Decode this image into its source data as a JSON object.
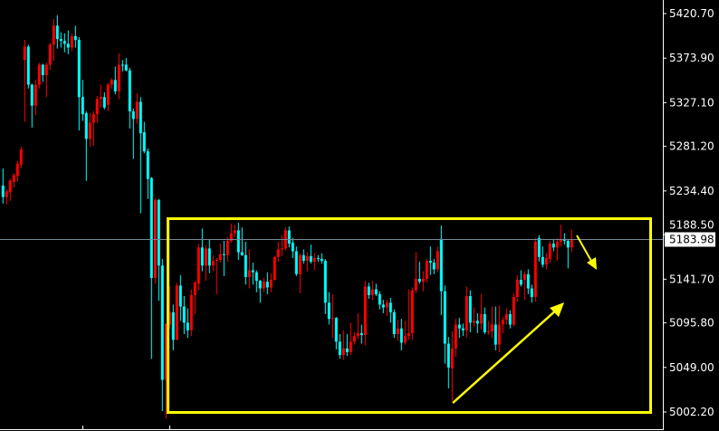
{
  "chart_data": {
    "type": "candlestick",
    "title": "",
    "xlabel": "",
    "ylabel": "",
    "ylim": [
      5002.2,
      5420.7
    ],
    "grid": false,
    "y_ticks": [
      "5420.70",
      "5373.90",
      "5327.10",
      "5281.20",
      "5234.40",
      "5188.50",
      "5141.70",
      "5095.80",
      "5049.00",
      "5002.20"
    ],
    "current_price": "5183.98",
    "colors": {
      "background": "#000000",
      "bull": "#ff0000",
      "bear": "#00ffff",
      "axis": "#ffffff",
      "price_line": "#778899",
      "annotation": "#ffff00"
    },
    "candles_ohlc": [
      [
        5240,
        5258,
        5221,
        5228
      ],
      [
        5228,
        5236,
        5220,
        5234
      ],
      [
        5233,
        5247,
        5224,
        5245
      ],
      [
        5244,
        5253,
        5238,
        5251
      ],
      [
        5250,
        5266,
        5244,
        5263
      ],
      [
        5262,
        5281,
        5258,
        5278
      ],
      [
        5372,
        5393,
        5307,
        5386
      ],
      [
        5386,
        5388,
        5342,
        5346
      ],
      [
        5346,
        5347,
        5301,
        5324
      ],
      [
        5324,
        5351,
        5314,
        5346
      ],
      [
        5346,
        5369,
        5342,
        5367
      ],
      [
        5367,
        5368,
        5349,
        5356
      ],
      [
        5356,
        5369,
        5333,
        5367
      ],
      [
        5367,
        5390,
        5362,
        5388
      ],
      [
        5388,
        5415,
        5371,
        5408
      ],
      [
        5408,
        5419,
        5384,
        5394
      ],
      [
        5394,
        5401,
        5385,
        5392
      ],
      [
        5392,
        5400,
        5380,
        5389
      ],
      [
        5389,
        5403,
        5378,
        5385
      ],
      [
        5385,
        5400,
        5381,
        5397
      ],
      [
        5397,
        5408,
        5385,
        5393
      ],
      [
        5393,
        5396,
        5298,
        5333
      ],
      [
        5333,
        5351,
        5308,
        5315
      ],
      [
        5316,
        5318,
        5245,
        5289
      ],
      [
        5289,
        5316,
        5281,
        5306
      ],
      [
        5306,
        5318,
        5282,
        5315
      ],
      [
        5315,
        5334,
        5306,
        5331
      ],
      [
        5331,
        5346,
        5322,
        5333
      ],
      [
        5333,
        5338,
        5320,
        5322
      ],
      [
        5325,
        5348,
        5318,
        5346
      ],
      [
        5346,
        5353,
        5342,
        5351
      ],
      [
        5351,
        5365,
        5336,
        5339
      ],
      [
        5339,
        5379,
        5331,
        5367
      ],
      [
        5367,
        5372,
        5360,
        5366
      ],
      [
        5367,
        5374,
        5360,
        5361
      ],
      [
        5361,
        5364,
        5300,
        5318
      ],
      [
        5318,
        5321,
        5268,
        5310
      ],
      [
        5310,
        5337,
        5305,
        5328
      ],
      [
        5328,
        5333,
        5211,
        5295
      ],
      [
        5296,
        5307,
        5274,
        5276
      ],
      [
        5276,
        5279,
        5226,
        5247
      ],
      [
        5248,
        5249,
        5058,
        5143
      ],
      [
        5143,
        5227,
        5137,
        5225
      ],
      [
        5225,
        5226,
        5119,
        5156
      ],
      [
        5156,
        5163,
        5003,
        5036
      ],
      [
        5036,
        5095,
        4995,
        5095
      ],
      [
        5094,
        5134,
        5090,
        5107
      ],
      [
        5107,
        5115,
        5067,
        5078
      ],
      [
        5078,
        5138,
        5078,
        5135
      ],
      [
        5135,
        5146,
        5098,
        5113
      ],
      [
        5113,
        5124,
        5084,
        5096
      ],
      [
        5096,
        5111,
        5080,
        5088
      ],
      [
        5088,
        5131,
        5082,
        5125
      ],
      [
        5125,
        5140,
        5105,
        5138
      ],
      [
        5137,
        5179,
        5130,
        5175
      ],
      [
        5175,
        5195,
        5150,
        5156
      ],
      [
        5156,
        5177,
        5140,
        5174
      ],
      [
        5174,
        5183,
        5148,
        5156
      ],
      [
        5156,
        5167,
        5150,
        5161
      ],
      [
        5161,
        5164,
        5126,
        5162
      ],
      [
        5162,
        5179,
        5159,
        5168
      ],
      [
        5168,
        5182,
        5145,
        5167
      ],
      [
        5167,
        5186,
        5160,
        5182
      ],
      [
        5182,
        5200,
        5180,
        5190
      ],
      [
        5190,
        5199,
        5186,
        5193
      ],
      [
        5193,
        5201,
        5162,
        5170
      ],
      [
        5170,
        5196,
        5166,
        5167
      ],
      [
        5167,
        5181,
        5136,
        5144
      ],
      [
        5144,
        5173,
        5132,
        5151
      ],
      [
        5151,
        5159,
        5136,
        5149
      ],
      [
        5149,
        5151,
        5128,
        5140
      ],
      [
        5140,
        5141,
        5117,
        5132
      ],
      [
        5132,
        5143,
        5128,
        5139
      ],
      [
        5139,
        5149,
        5126,
        5133
      ],
      [
        5133,
        5148,
        5128,
        5141
      ],
      [
        5141,
        5166,
        5140,
        5165
      ],
      [
        5165,
        5181,
        5160,
        5173
      ],
      [
        5173,
        5188,
        5166,
        5174
      ],
      [
        5174,
        5196,
        5172,
        5193
      ],
      [
        5193,
        5197,
        5175,
        5179
      ],
      [
        5180,
        5185,
        5164,
        5171
      ],
      [
        5171,
        5176,
        5145,
        5147
      ],
      [
        5147,
        5169,
        5127,
        5167
      ],
      [
        5167,
        5173,
        5158,
        5161
      ],
      [
        5161,
        5170,
        5150,
        5166
      ],
      [
        5166,
        5178,
        5158,
        5160
      ],
      [
        5160,
        5169,
        5151,
        5164
      ],
      [
        5164,
        5167,
        5160,
        5163
      ],
      [
        5163,
        5169,
        5158,
        5161
      ],
      [
        5161,
        5163,
        5105,
        5117
      ],
      [
        5117,
        5128,
        5094,
        5100
      ],
      [
        5100,
        5126,
        5080,
        5101
      ],
      [
        5101,
        5102,
        5068,
        5076
      ],
      [
        5076,
        5084,
        5058,
        5062
      ],
      [
        5062,
        5088,
        5057,
        5069
      ],
      [
        5069,
        5084,
        5061,
        5065
      ],
      [
        5065,
        5096,
        5062,
        5076
      ],
      [
        5076,
        5086,
        5073,
        5082
      ],
      [
        5082,
        5106,
        5079,
        5085
      ],
      [
        5085,
        5094,
        5074,
        5083
      ],
      [
        5083,
        5140,
        5072,
        5134
      ],
      [
        5134,
        5138,
        5121,
        5125
      ],
      [
        5125,
        5140,
        5120,
        5131
      ],
      [
        5131,
        5137,
        5124,
        5126
      ],
      [
        5126,
        5129,
        5110,
        5115
      ],
      [
        5115,
        5120,
        5106,
        5112
      ],
      [
        5112,
        5120,
        5103,
        5117
      ],
      [
        5117,
        5122,
        5096,
        5107
      ],
      [
        5107,
        5110,
        5080,
        5084
      ],
      [
        5084,
        5099,
        5077,
        5090
      ],
      [
        5090,
        5100,
        5067,
        5075
      ],
      [
        5075,
        5098,
        5073,
        5082
      ],
      [
        5082,
        5131,
        5078,
        5085
      ],
      [
        5085,
        5133,
        5078,
        5130
      ],
      [
        5130,
        5170,
        5127,
        5142
      ],
      [
        5142,
        5160,
        5137,
        5139
      ],
      [
        5139,
        5150,
        5129,
        5142
      ],
      [
        5142,
        5163,
        5138,
        5161
      ],
      [
        5161,
        5176,
        5146,
        5159
      ],
      [
        5159,
        5163,
        5147,
        5152
      ],
      [
        5152,
        5176,
        5149,
        5171
      ],
      [
        5184,
        5198,
        5104,
        5129
      ],
      [
        5129,
        5135,
        5053,
        5074
      ],
      [
        5074,
        5081,
        5027,
        5049
      ],
      [
        5048,
        5087,
        5014,
        5069
      ],
      [
        5069,
        5100,
        5060,
        5094
      ],
      [
        5094,
        5101,
        5080,
        5090
      ],
      [
        5090,
        5095,
        5082,
        5088
      ],
      [
        5088,
        5134,
        5080,
        5124
      ],
      [
        5124,
        5130,
        5086,
        5096
      ],
      [
        5096,
        5112,
        5092,
        5098
      ],
      [
        5098,
        5106,
        5085,
        5095
      ],
      [
        5095,
        5126,
        5089,
        5105
      ],
      [
        5105,
        5112,
        5084,
        5086
      ],
      [
        5086,
        5098,
        5083,
        5087
      ],
      [
        5087,
        5113,
        5080,
        5094
      ],
      [
        5094,
        5113,
        5067,
        5073
      ],
      [
        5073,
        5114,
        5065,
        5094
      ],
      [
        5094,
        5102,
        5085,
        5099
      ],
      [
        5099,
        5111,
        5094,
        5105
      ],
      [
        5105,
        5109,
        5090,
        5094
      ],
      [
        5094,
        5127,
        5092,
        5123
      ],
      [
        5123,
        5146,
        5118,
        5141
      ],
      [
        5141,
        5151,
        5134,
        5136
      ],
      [
        5141,
        5150,
        5120,
        5147
      ],
      [
        5147,
        5152,
        5126,
        5132
      ],
      [
        5132,
        5136,
        5117,
        5123
      ],
      [
        5123,
        5185,
        5118,
        5181
      ],
      [
        5185,
        5188,
        5160,
        5165
      ],
      [
        5165,
        5176,
        5154,
        5157
      ],
      [
        5157,
        5169,
        5152,
        5164
      ],
      [
        5163,
        5182,
        5159,
        5179
      ],
      [
        5179,
        5184,
        5171,
        5175
      ],
      [
        5175,
        5185,
        5161,
        5181
      ],
      [
        5181,
        5199,
        5176,
        5184
      ],
      [
        5184,
        5190,
        5178,
        5182
      ],
      [
        5182,
        5184,
        5153,
        5175
      ],
      [
        5175,
        5194,
        5170,
        5183.98
      ]
    ]
  }
}
